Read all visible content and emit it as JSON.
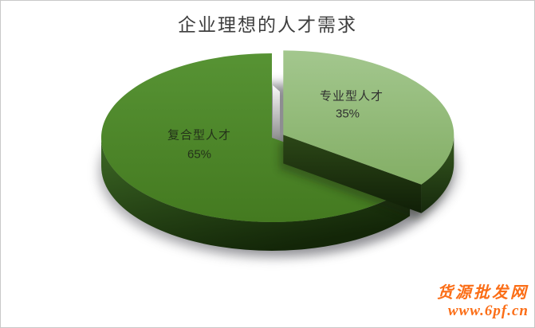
{
  "chart_data": {
    "type": "pie",
    "style": "3d-exploded",
    "title": "企业理想的人才需求",
    "start_angle_deg": 0,
    "direction": "clockwise",
    "legend": "none",
    "label_color_light_slice": "#303030",
    "label_color_dark_slice": "#24321a",
    "slices": [
      {
        "label": "专业型人才",
        "value": 35,
        "pct_label": "35%",
        "color": "#9cc386",
        "color_bottom": "#83ae65",
        "side_color": "#375a20",
        "side_color_bottom": "#16290c",
        "exploded": true
      },
      {
        "label": "复合型人才",
        "value": 65,
        "pct_label": "65%",
        "color": "#509030",
        "color_bottom": "#447a20",
        "side_color": "#3e6a26",
        "side_color_bottom": "#132608",
        "exploded": false
      }
    ]
  },
  "watermark": {
    "line1": "货源批发网",
    "line2": "www.6pf.cn",
    "color": "#fb6e17"
  },
  "frame": {
    "border_color": "#c8c8c8",
    "background": "#ffffff"
  }
}
